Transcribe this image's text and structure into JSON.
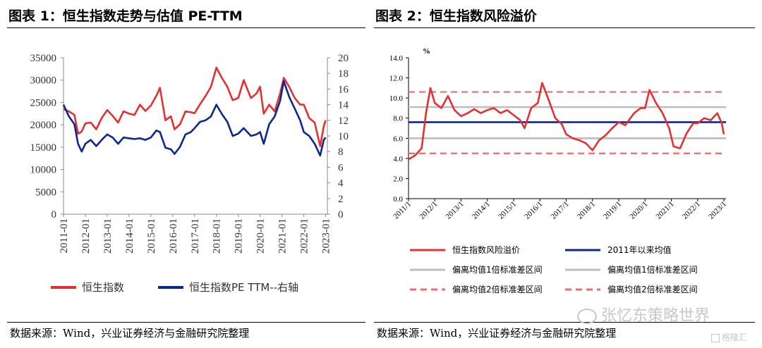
{
  "left_panel": {
    "title": "图表 1：恒生指数走势与估值 PE-TTM",
    "source": "数据来源：Wind，兴业证券经济与金融研究院整理"
  },
  "right_panel": {
    "title": "图表 2：恒生指数风险溢价",
    "source": "数据来源：Wind，兴业证券经济与金融研究院整理"
  },
  "watermark": {
    "brand": "张忆东策略世界",
    "corner": "格隆汇"
  },
  "colors": {
    "red": "#e5302f",
    "navy": "#0b2891",
    "grey": "#bdbdbd",
    "dashed_red": "#ee6b6b"
  },
  "chart_data": [
    {
      "type": "line",
      "title": "",
      "x_ticks": [
        "2011-01",
        "2012-01",
        "2013-01",
        "2014-01",
        "2015-01",
        "2016-01",
        "2017-01",
        "2018-01",
        "2019-01",
        "2020-01",
        "2021-01",
        "2022-01",
        "2023-01"
      ],
      "y_left": {
        "ticks": [
          0,
          5000,
          10000,
          15000,
          20000,
          25000,
          30000,
          35000
        ],
        "range": [
          0,
          35000
        ]
      },
      "y_right": {
        "ticks": [
          0,
          2,
          4,
          6,
          8,
          10,
          12,
          14,
          16,
          18,
          20
        ],
        "range": [
          0,
          20
        ]
      },
      "legend_position": "bottom",
      "series": [
        {
          "name": "恒生指数",
          "axis": "left",
          "color": "#e5302f",
          "x": [
            "2011-01",
            "2011-04",
            "2011-07",
            "2011-09",
            "2011-11",
            "2012-01",
            "2012-04",
            "2012-07",
            "2012-10",
            "2013-01",
            "2013-04",
            "2013-07",
            "2013-10",
            "2014-01",
            "2014-04",
            "2014-07",
            "2014-10",
            "2015-01",
            "2015-04",
            "2015-06",
            "2015-09",
            "2015-12",
            "2016-02",
            "2016-05",
            "2016-08",
            "2016-11",
            "2017-01",
            "2017-04",
            "2017-07",
            "2017-10",
            "2018-01",
            "2018-04",
            "2018-07",
            "2018-10",
            "2019-01",
            "2019-04",
            "2019-08",
            "2019-11",
            "2020-01",
            "2020-03",
            "2020-06",
            "2020-09",
            "2020-12",
            "2021-02",
            "2021-05",
            "2021-08",
            "2021-11",
            "2022-01",
            "2022-04",
            "2022-07",
            "2022-10",
            "2022-12",
            "2023-01"
          ],
          "y": [
            23500,
            23000,
            22200,
            18000,
            18500,
            20300,
            20500,
            19000,
            21500,
            23300,
            22000,
            20500,
            23000,
            22500,
            22200,
            24500,
            23100,
            24300,
            26500,
            28300,
            21000,
            21900,
            19000,
            20100,
            23000,
            22800,
            22600,
            24600,
            26400,
            28500,
            32800,
            30500,
            28500,
            25500,
            26000,
            30000,
            26000,
            27000,
            28500,
            22500,
            24500,
            23000,
            27000,
            30500,
            28500,
            26000,
            24500,
            24500,
            21500,
            20500,
            15200,
            19700,
            21000
          ]
        },
        {
          "name": "恒生指数PE TTM--右轴",
          "axis": "right",
          "color": "#0b2891",
          "x": [
            "2011-01",
            "2011-04",
            "2011-07",
            "2011-09",
            "2011-11",
            "2012-01",
            "2012-04",
            "2012-07",
            "2012-10",
            "2013-01",
            "2013-04",
            "2013-07",
            "2013-10",
            "2014-01",
            "2014-04",
            "2014-07",
            "2014-10",
            "2015-01",
            "2015-04",
            "2015-06",
            "2015-09",
            "2015-12",
            "2016-02",
            "2016-05",
            "2016-08",
            "2016-11",
            "2017-01",
            "2017-04",
            "2017-07",
            "2017-10",
            "2018-01",
            "2018-04",
            "2018-07",
            "2018-10",
            "2019-01",
            "2019-04",
            "2019-08",
            "2019-11",
            "2020-01",
            "2020-03",
            "2020-06",
            "2020-09",
            "2020-12",
            "2021-02",
            "2021-05",
            "2021-08",
            "2021-11",
            "2022-01",
            "2022-04",
            "2022-07",
            "2022-10",
            "2022-12",
            "2023-01"
          ],
          "y": [
            14.0,
            12.5,
            11.5,
            9.0,
            8.0,
            9.0,
            9.5,
            8.7,
            9.5,
            10.2,
            9.8,
            9.0,
            9.8,
            9.7,
            9.6,
            9.7,
            9.5,
            9.8,
            10.7,
            10.5,
            8.5,
            8.3,
            7.7,
            8.6,
            10.2,
            10.5,
            11.0,
            11.8,
            12.0,
            12.5,
            14.0,
            12.8,
            11.8,
            10.0,
            10.3,
            11.0,
            10.0,
            10.2,
            10.5,
            9.0,
            11.5,
            12.5,
            14.5,
            17.0,
            15.0,
            13.5,
            12.0,
            10.5,
            10.0,
            9.0,
            7.5,
            9.5,
            9.8
          ]
        }
      ]
    },
    {
      "type": "line",
      "title": "",
      "unit_label": "%",
      "x_ticks": [
        "2011/1",
        "2012/1",
        "2013/1",
        "2014/1",
        "2015/1",
        "2016/1",
        "2017/1",
        "2018/1",
        "2019/1",
        "2020/1",
        "2021/1",
        "2022/1",
        "2023/1"
      ],
      "y": {
        "ticks": [
          "0.0",
          "2.0",
          "4.0",
          "6.0",
          "8.0",
          "10.0",
          "12.0",
          "14.0"
        ],
        "range": [
          0,
          14
        ]
      },
      "legend_position": "bottom",
      "series": [
        {
          "name": "恒生指数风险溢价",
          "color": "#e5302f",
          "style": "solid",
          "x": [
            "2011/1",
            "2011/4",
            "2011/7",
            "2011/9",
            "2011/11",
            "2012/1",
            "2012/4",
            "2012/7",
            "2012/10",
            "2013/1",
            "2013/4",
            "2013/7",
            "2013/10",
            "2014/1",
            "2014/4",
            "2014/7",
            "2014/10",
            "2015/1",
            "2015/4",
            "2015/6",
            "2015/9",
            "2015/12",
            "2016/2",
            "2016/5",
            "2016/8",
            "2016/11",
            "2017/1",
            "2017/4",
            "2017/7",
            "2017/10",
            "2018/1",
            "2018/4",
            "2018/7",
            "2018/10",
            "2019/1",
            "2019/4",
            "2019/8",
            "2019/11",
            "2020/1",
            "2020/3",
            "2020/6",
            "2020/9",
            "2020/12",
            "2021/2",
            "2021/5",
            "2021/8",
            "2021/11",
            "2022/1",
            "2022/4",
            "2022/7",
            "2022/10",
            "2022/12",
            "2023/1"
          ],
          "y": [
            3.9,
            4.3,
            5.0,
            8.5,
            11.0,
            9.5,
            9.0,
            10.2,
            8.8,
            8.2,
            8.5,
            8.9,
            8.5,
            8.8,
            9.0,
            8.5,
            8.8,
            8.3,
            7.8,
            7.0,
            9.0,
            9.5,
            11.5,
            9.8,
            8.0,
            7.4,
            6.4,
            6.0,
            5.8,
            5.5,
            4.8,
            5.8,
            6.3,
            7.0,
            7.6,
            7.3,
            8.5,
            9.0,
            9.0,
            10.8,
            9.5,
            8.5,
            7.0,
            5.2,
            5.0,
            6.5,
            7.5,
            7.5,
            8.0,
            7.8,
            8.5,
            7.5,
            6.4
          ]
        },
        {
          "name": "2011年以来均值",
          "color": "#0b2891",
          "style": "solid",
          "value": 7.6
        },
        {
          "name": "偏离均值1倍标准差区间",
          "color": "#bdbdbd",
          "style": "solid",
          "value": 9.1
        },
        {
          "name": "偏离均值1倍标准差区间",
          "color": "#bdbdbd",
          "style": "solid",
          "value": 6.0
        },
        {
          "name": "偏离均值2倍标准差区间",
          "color": "#ee6b6b",
          "style": "dashed",
          "value": 10.6
        },
        {
          "name": "偏离均值2倍标准差区间",
          "color": "#ee6b6b",
          "style": "dashed",
          "value": 4.5
        }
      ]
    }
  ]
}
